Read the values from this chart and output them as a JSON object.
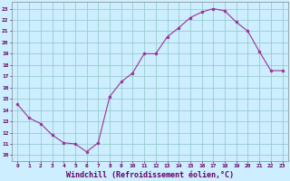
{
  "x": [
    0,
    1,
    2,
    3,
    4,
    5,
    6,
    7,
    8,
    9,
    10,
    11,
    12,
    13,
    14,
    15,
    16,
    17,
    18,
    19,
    20,
    21,
    22,
    23
  ],
  "y": [
    14.5,
    13.3,
    12.8,
    11.8,
    11.1,
    11.0,
    10.3,
    11.1,
    15.2,
    16.5,
    17.3,
    19.0,
    19.0,
    20.5,
    21.3,
    22.2,
    22.7,
    23.0,
    22.8,
    21.8,
    21.0,
    19.2,
    17.5,
    17.5
  ],
  "line_color": "#993399",
  "marker_color": "#993399",
  "bg_color": "#cceeff",
  "grid_color": "#99cccc",
  "xlabel": "Windchill (Refroidissement éolien,°C)",
  "xlabel_fontsize": 6.0,
  "xtick_labels": [
    "0",
    "1",
    "2",
    "3",
    "4",
    "5",
    "6",
    "7",
    "8",
    "9",
    "10",
    "11",
    "12",
    "13",
    "14",
    "15",
    "16",
    "17",
    "18",
    "19",
    "20",
    "21",
    "22",
    "23"
  ],
  "ytick_min": 10,
  "ytick_max": 23,
  "ylim_min": 9.5,
  "ylim_max": 23.6,
  "xlim_min": -0.5,
  "xlim_max": 23.5
}
